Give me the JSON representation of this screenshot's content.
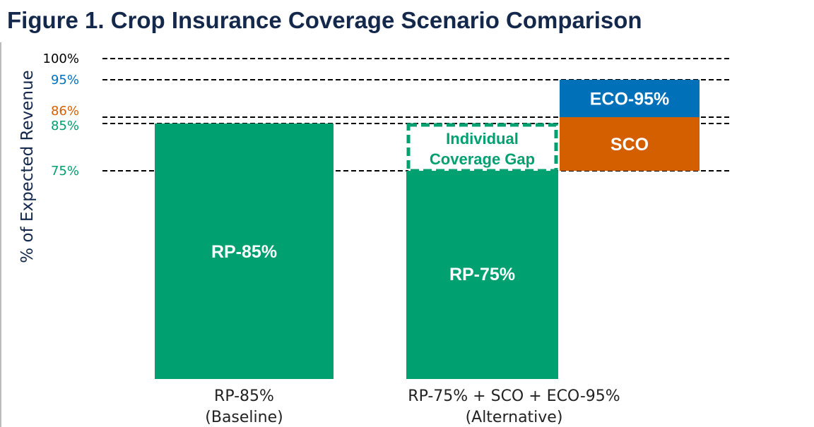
{
  "title": "Figure 1. Crop Insurance Coverage Scenario Comparison",
  "chart_data": {
    "type": "bar",
    "ylabel": "% of Expected Revenue",
    "reference_lines": [
      {
        "label": "100%",
        "value": 100,
        "color": "#000000"
      },
      {
        "label": "95%",
        "value": 95,
        "color": "#0070c0"
      },
      {
        "label": "86%",
        "value": 86,
        "color": "#d45f00"
      },
      {
        "label": "85%",
        "value": 85,
        "color": "#009e6e"
      },
      {
        "label": "75%",
        "value": 75,
        "color": "#009e6e"
      }
    ],
    "categories": [
      {
        "line1": "RP-85%",
        "line2": "(Baseline)"
      },
      {
        "line1": "RP-75% + SCO + ECO-95%",
        "line2": "(Alternative)"
      }
    ],
    "segments": [
      {
        "category": 0,
        "label": "RP-85%",
        "from": 0,
        "to": 85,
        "color": "#00a070",
        "style": "solid"
      },
      {
        "category": 1,
        "label": "RP-75%",
        "from": 0,
        "to": 75,
        "color": "#00a070",
        "style": "solid"
      },
      {
        "category": 1,
        "label": "Individual Coverage Gap",
        "from": 75,
        "to": 85,
        "color": "#00a070",
        "style": "dashed"
      },
      {
        "category": 1,
        "label": "SCO",
        "from": 75,
        "to": 86,
        "color": "#d45f00",
        "style": "solid",
        "offset": true
      },
      {
        "category": 1,
        "label": "ECO-95%",
        "from": 86,
        "to": 95,
        "color": "#0070b8",
        "style": "solid",
        "offset": true
      }
    ]
  }
}
